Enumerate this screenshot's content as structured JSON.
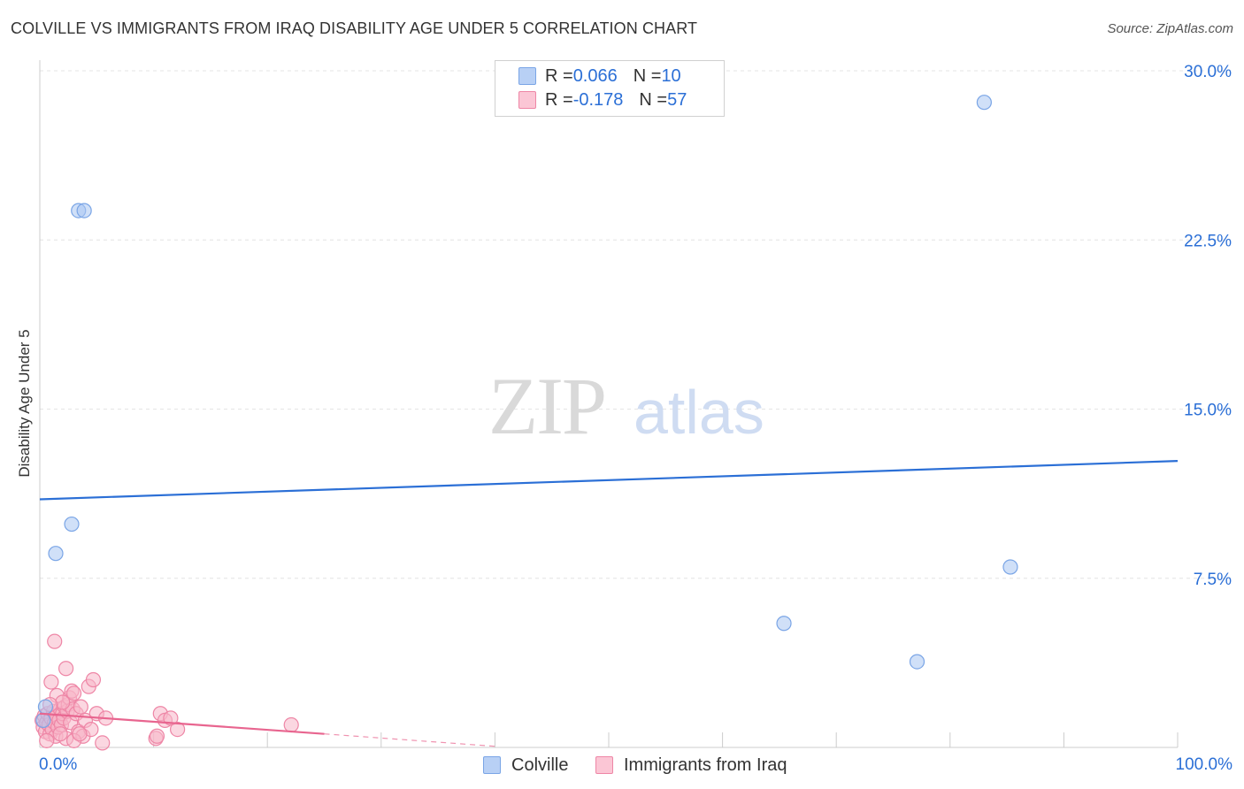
{
  "title": "COLVILLE VS IMMIGRANTS FROM IRAQ DISABILITY AGE UNDER 5 CORRELATION CHART",
  "source": "Source: ZipAtlas.com",
  "watermark": {
    "zip": "ZIP",
    "atlas": "atlas"
  },
  "legend": {
    "series1": {
      "r_label": "R = ",
      "r_value": "0.066",
      "n_label": "N = ",
      "n_value": "10"
    },
    "series2": {
      "r_label": "R = ",
      "r_value": "-0.178",
      "n_label": "N = ",
      "n_value": "57"
    }
  },
  "colors": {
    "blue_fill": "#a9c6f2",
    "blue_stroke": "#7aa5e6",
    "blue_line": "#2b6fd6",
    "pink_fill": "#f7b6c9",
    "pink_stroke": "#ee86a6",
    "pink_line": "#e8658f",
    "grid": "#e4e4e4",
    "axis_text": "#2b6fd6"
  },
  "chart_data": {
    "type": "scatter",
    "title": "COLVILLE VS IMMIGRANTS FROM IRAQ DISABILITY AGE UNDER 5 CORRELATION CHART",
    "ylabel": "Disability Age Under 5",
    "xlabel": "",
    "xlim": [
      0,
      100
    ],
    "ylim": [
      0,
      30
    ],
    "x_tick_labels": [
      "0.0%",
      "100.0%"
    ],
    "y_ticks": [
      7.5,
      15.0,
      22.5,
      30.0
    ],
    "y_tick_labels": [
      "7.5%",
      "15.0%",
      "22.5%",
      "30.0%"
    ],
    "grid": true,
    "legend_position": "top-center",
    "series": [
      {
        "name": "Colville",
        "color": "#a9c6f2",
        "points": [
          [
            0.5,
            1.8
          ],
          [
            3.4,
            23.8
          ],
          [
            3.9,
            23.8
          ],
          [
            1.4,
            8.6
          ],
          [
            2.8,
            9.9
          ],
          [
            65.4,
            5.5
          ],
          [
            77.1,
            3.8
          ],
          [
            83.0,
            28.6
          ],
          [
            85.3,
            8.0
          ],
          [
            0.3,
            1.2
          ]
        ],
        "trend": {
          "x": [
            0,
            100
          ],
          "y": [
            11.0,
            12.7
          ]
        }
      },
      {
        "name": "Immigrants from Iraq",
        "color": "#f7b6c9",
        "points": [
          [
            0.2,
            1.2
          ],
          [
            0.3,
            0.9
          ],
          [
            0.4,
            1.4
          ],
          [
            0.5,
            0.7
          ],
          [
            0.6,
            1.1
          ],
          [
            0.7,
            1.5
          ],
          [
            0.8,
            1.0
          ],
          [
            0.9,
            0.6
          ],
          [
            1.0,
            1.3
          ],
          [
            1.1,
            0.8
          ],
          [
            1.2,
            1.6
          ],
          [
            1.3,
            1.1
          ],
          [
            1.4,
            0.5
          ],
          [
            1.5,
            1.4
          ],
          [
            1.6,
            0.9
          ],
          [
            1.7,
            1.2
          ],
          [
            1.8,
            1.7
          ],
          [
            1.9,
            1.0
          ],
          [
            2.0,
            1.5
          ],
          [
            2.1,
            1.3
          ],
          [
            2.2,
            1.8
          ],
          [
            2.3,
            0.4
          ],
          [
            2.4,
            1.6
          ],
          [
            2.5,
            1.9
          ],
          [
            2.6,
            2.2
          ],
          [
            2.7,
            1.1
          ],
          [
            2.8,
            2.5
          ],
          [
            2.9,
            1.7
          ],
          [
            3.0,
            2.4
          ],
          [
            3.2,
            1.5
          ],
          [
            3.4,
            0.7
          ],
          [
            3.6,
            1.8
          ],
          [
            3.8,
            0.5
          ],
          [
            4.0,
            1.2
          ],
          [
            4.3,
            2.7
          ],
          [
            4.5,
            0.8
          ],
          [
            4.7,
            3.0
          ],
          [
            5.0,
            1.5
          ],
          [
            5.5,
            0.2
          ],
          [
            5.8,
            1.3
          ],
          [
            1.3,
            4.7
          ],
          [
            2.3,
            3.5
          ],
          [
            1.0,
            2.9
          ],
          [
            1.5,
            2.3
          ],
          [
            2.0,
            2.0
          ],
          [
            3.0,
            0.3
          ],
          [
            3.5,
            0.6
          ],
          [
            0.6,
            0.3
          ],
          [
            10.6,
            1.5
          ],
          [
            11.0,
            1.2
          ],
          [
            11.5,
            1.3
          ],
          [
            12.1,
            0.8
          ],
          [
            10.2,
            0.4
          ],
          [
            10.3,
            0.5
          ],
          [
            22.1,
            1.0
          ],
          [
            1.8,
            0.6
          ],
          [
            0.9,
            1.9
          ]
        ],
        "trend": {
          "x": [
            0,
            25
          ],
          "y": [
            1.5,
            0.6
          ]
        },
        "trend_extension": {
          "x": [
            25,
            40
          ],
          "y": [
            0.6,
            0.05
          ]
        }
      }
    ]
  },
  "bottom_legend": {
    "item1": "Colville",
    "item2": "Immigrants from Iraq"
  }
}
